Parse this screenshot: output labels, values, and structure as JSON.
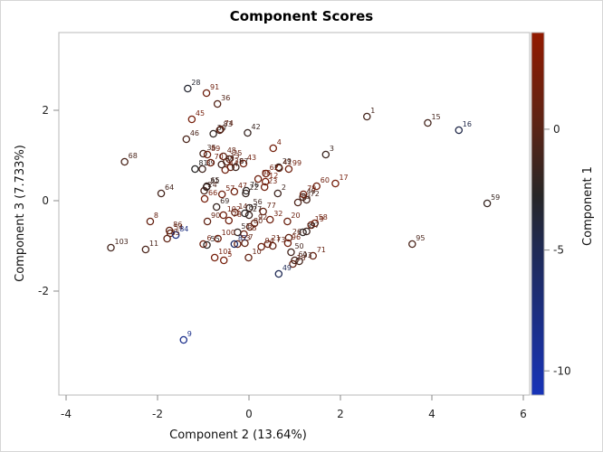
{
  "chart_data": {
    "type": "scatter",
    "title": "Component Scores",
    "xlabel": "Component 2 (13.64%)",
    "ylabel": "Component 3 (7.733%)",
    "colorbar_label": "Component 1",
    "xlim": [
      -4.2,
      6.1
    ],
    "ylim": [
      -4.3,
      3.7
    ],
    "xticks": [
      -4,
      -2,
      0,
      2,
      4,
      6
    ],
    "yticks": [
      -2,
      0,
      2
    ],
    "colorbar_ticks": [
      0,
      -5,
      -10
    ],
    "colorbar_range": [
      -11,
      4
    ],
    "colors": {
      "high": "#921a00",
      "mid": "#2a2a2a",
      "low": "#1733b8"
    },
    "grid": false,
    "legend_position": "right colorbar",
    "points": [
      {
        "id": "1",
        "x": 2.58,
        "y": 1.86,
        "c": -1.5
      },
      {
        "id": "2",
        "x": 0.63,
        "y": 0.16,
        "c": -2.0
      },
      {
        "id": "3",
        "x": 1.68,
        "y": 1.02,
        "c": -2.2
      },
      {
        "id": "4",
        "x": 0.53,
        "y": 1.16,
        "c": 1.8
      },
      {
        "id": "5",
        "x": -0.55,
        "y": -1.32,
        "c": 2.0
      },
      {
        "id": "6",
        "x": -1.0,
        "y": -0.96,
        "c": 1.5
      },
      {
        "id": "7",
        "x": -0.09,
        "y": -0.94,
        "c": 0.5
      },
      {
        "id": "8",
        "x": -2.16,
        "y": -0.46,
        "c": 0.8
      },
      {
        "id": "9",
        "x": -1.43,
        "y": -3.08,
        "c": -8.5
      },
      {
        "id": "10",
        "x": -0.01,
        "y": -1.26,
        "c": 0.8
      },
      {
        "id": "11",
        "x": -2.26,
        "y": -1.08,
        "c": -1.0
      },
      {
        "id": "12",
        "x": 0.36,
        "y": 0.42,
        "c": 2.0
      },
      {
        "id": "13",
        "x": -0.49,
        "y": 0.86,
        "c": 0.5
      },
      {
        "id": "14",
        "x": -0.31,
        "y": -0.26,
        "c": 0.5
      },
      {
        "id": "15",
        "x": 3.91,
        "y": 1.72,
        "c": -1.5
      },
      {
        "id": "16",
        "x": 4.59,
        "y": 1.56,
        "c": -5.0
      },
      {
        "id": "17",
        "x": 1.89,
        "y": 0.38,
        "c": 2.0
      },
      {
        "id": "18",
        "x": 0.96,
        "y": -1.4,
        "c": 0.8
      },
      {
        "id": "19",
        "x": 1.36,
        "y": -0.54,
        "c": 1.5
      },
      {
        "id": "20",
        "x": 0.84,
        "y": -0.46,
        "c": 1.2
      },
      {
        "id": "21",
        "x": 0.41,
        "y": -0.96,
        "c": 1.0
      },
      {
        "id": "22",
        "x": -0.07,
        "y": 0.16,
        "c": -2.5
      },
      {
        "id": "23",
        "x": 0.34,
        "y": 0.3,
        "c": 1.5
      },
      {
        "id": "24",
        "x": -0.98,
        "y": 0.22,
        "c": -1.0
      },
      {
        "id": "25",
        "x": -0.43,
        "y": 0.92,
        "c": 0.8
      },
      {
        "id": "26",
        "x": 0.87,
        "y": -0.82,
        "c": 0.5
      },
      {
        "id": "27",
        "x": 0.0,
        "y": -0.32,
        "c": -2.0
      },
      {
        "id": "28",
        "x": -1.34,
        "y": 2.48,
        "c": -4.0
      },
      {
        "id": "29",
        "x": 0.65,
        "y": 0.74,
        "c": -2.5
      },
      {
        "id": "30",
        "x": -0.78,
        "y": 1.48,
        "c": -2.8
      },
      {
        "id": "31",
        "x": -0.93,
        "y": 0.3,
        "c": -2.0
      },
      {
        "id": "32",
        "x": 0.46,
        "y": -0.42,
        "c": 1.5
      },
      {
        "id": "33",
        "x": -0.11,
        "y": -0.74,
        "c": 1.5
      },
      {
        "id": "35",
        "x": -1.0,
        "y": 1.04,
        "c": -1.5
      },
      {
        "id": "36",
        "x": -0.69,
        "y": 2.14,
        "c": -0.5
      },
      {
        "id": "37",
        "x": 1.18,
        "y": -0.7,
        "c": -3.0
      },
      {
        "id": "38",
        "x": -0.4,
        "y": 0.74,
        "c": 0.8
      },
      {
        "id": "39",
        "x": -1.02,
        "y": 0.7,
        "c": -1.8
      },
      {
        "id": "40",
        "x": 1.18,
        "y": 0.08,
        "c": -1.0
      },
      {
        "id": "41",
        "x": 0.66,
        "y": 0.72,
        "c": 0.3
      },
      {
        "id": "42",
        "x": -0.03,
        "y": 1.5,
        "c": -2.5
      },
      {
        "id": "43",
        "x": -0.12,
        "y": 0.82,
        "c": 1.5
      },
      {
        "id": "44",
        "x": -0.52,
        "y": 0.68,
        "c": 1.5
      },
      {
        "id": "45",
        "x": -1.25,
        "y": 1.8,
        "c": 2.0
      },
      {
        "id": "46",
        "x": -1.37,
        "y": 1.36,
        "c": -1.0
      },
      {
        "id": "47",
        "x": -0.32,
        "y": 0.2,
        "c": 1.5
      },
      {
        "id": "48",
        "x": -0.56,
        "y": 0.98,
        "c": 0.5
      },
      {
        "id": "49",
        "x": 0.65,
        "y": -1.62,
        "c": -5.5
      },
      {
        "id": "50",
        "x": 0.92,
        "y": -1.14,
        "c": -1.5
      },
      {
        "id": "51",
        "x": -0.25,
        "y": -0.7,
        "c": -2.5
      },
      {
        "id": "53",
        "x": -0.25,
        "y": -0.96,
        "c": 1.0
      },
      {
        "id": "54",
        "x": -1.72,
        "y": -0.72,
        "c": 0.5
      },
      {
        "id": "55",
        "x": -0.92,
        "y": -0.98,
        "c": -3.0
      },
      {
        "id": "56",
        "x": 0.01,
        "y": -0.16,
        "c": -2.0
      },
      {
        "id": "57",
        "x": -0.59,
        "y": 0.14,
        "c": 1.5
      },
      {
        "id": "58",
        "x": 1.44,
        "y": -0.5,
        "c": 1.5
      },
      {
        "id": "59",
        "x": 5.21,
        "y": -0.06,
        "c": -2.5
      },
      {
        "id": "60",
        "x": 1.48,
        "y": 0.32,
        "c": 1.5
      },
      {
        "id": "61",
        "x": 1.0,
        "y": -1.32,
        "c": -1.0
      },
      {
        "id": "62",
        "x": 0.37,
        "y": 0.6,
        "c": 1.5
      },
      {
        "id": "63",
        "x": 1.07,
        "y": -0.04,
        "c": -0.8
      },
      {
        "id": "64",
        "x": -1.92,
        "y": 0.16,
        "c": -1.5
      },
      {
        "id": "65",
        "x": -0.92,
        "y": 0.32,
        "c": -2.5
      },
      {
        "id": "66",
        "x": -0.97,
        "y": 0.04,
        "c": 2.0
      },
      {
        "id": "67",
        "x": -0.29,
        "y": 0.74,
        "c": -2.0
      },
      {
        "id": "68",
        "x": -2.72,
        "y": 0.86,
        "c": -1.0
      },
      {
        "id": "69",
        "x": -0.71,
        "y": -0.14,
        "c": -2.5
      },
      {
        "id": "70",
        "x": -0.84,
        "y": 0.84,
        "c": 1.5
      },
      {
        "id": "71",
        "x": 1.4,
        "y": -1.22,
        "c": 0.8
      },
      {
        "id": "72",
        "x": 1.26,
        "y": 0.02,
        "c": -1.5
      },
      {
        "id": "73",
        "x": 0.52,
        "y": -1.0,
        "c": 0.5
      },
      {
        "id": "74",
        "x": -0.62,
        "y": 1.58,
        "c": 0.3
      },
      {
        "id": "76",
        "x": -0.06,
        "y": 0.22,
        "c": -3.0
      },
      {
        "id": "77",
        "x": 0.31,
        "y": -0.24,
        "c": 0.5
      },
      {
        "id": "78",
        "x": -0.44,
        "y": -0.44,
        "c": 1.5
      },
      {
        "id": "79",
        "x": 1.19,
        "y": 0.14,
        "c": 1.5
      },
      {
        "id": "80",
        "x": 0.02,
        "y": -0.58,
        "c": 0.5
      },
      {
        "id": "81",
        "x": -1.18,
        "y": 0.7,
        "c": -3.5
      },
      {
        "id": "82",
        "x": -0.32,
        "y": -0.96,
        "c": -6.5
      },
      {
        "id": "83",
        "x": -0.64,
        "y": 1.56,
        "c": -0.8
      },
      {
        "id": "84",
        "x": -1.6,
        "y": -0.76,
        "c": -8.0
      },
      {
        "id": "85",
        "x": -1.79,
        "y": -0.84,
        "c": 0.3
      },
      {
        "id": "86",
        "x": -1.74,
        "y": -0.66,
        "c": 0.5
      },
      {
        "id": "87",
        "x": -0.09,
        "y": -0.28,
        "c": -3.0
      },
      {
        "id": "88",
        "x": -0.6,
        "y": 0.8,
        "c": -1.5
      },
      {
        "id": "89",
        "x": -0.91,
        "y": 1.02,
        "c": 1.5
      },
      {
        "id": "90",
        "x": -0.91,
        "y": -0.46,
        "c": 0.5
      },
      {
        "id": "91",
        "x": -0.93,
        "y": 2.38,
        "c": 1.5
      },
      {
        "id": "92",
        "x": 0.12,
        "y": -0.5,
        "c": 0.5
      },
      {
        "id": "93",
        "x": 1.1,
        "y": -1.34,
        "c": -1.5
      },
      {
        "id": "94",
        "x": 0.27,
        "y": -1.02,
        "c": 1.2
      },
      {
        "id": "95",
        "x": 3.57,
        "y": -0.96,
        "c": -1.0
      },
      {
        "id": "96",
        "x": 0.85,
        "y": -0.94,
        "c": 1.5
      },
      {
        "id": "97",
        "x": 1.26,
        "y": -0.68,
        "c": -2.0
      },
      {
        "id": "98",
        "x": 0.2,
        "y": 0.48,
        "c": 1.5
      },
      {
        "id": "99",
        "x": 0.87,
        "y": 0.7,
        "c": 1.5
      },
      {
        "id": "100",
        "x": -0.68,
        "y": -0.84,
        "c": 1.5
      },
      {
        "id": "101",
        "x": -0.75,
        "y": -1.26,
        "c": 2.0
      },
      {
        "id": "102",
        "x": -0.56,
        "y": -0.32,
        "c": 1.5
      },
      {
        "id": "103",
        "x": -3.02,
        "y": -1.04,
        "c": -1.5
      }
    ]
  }
}
